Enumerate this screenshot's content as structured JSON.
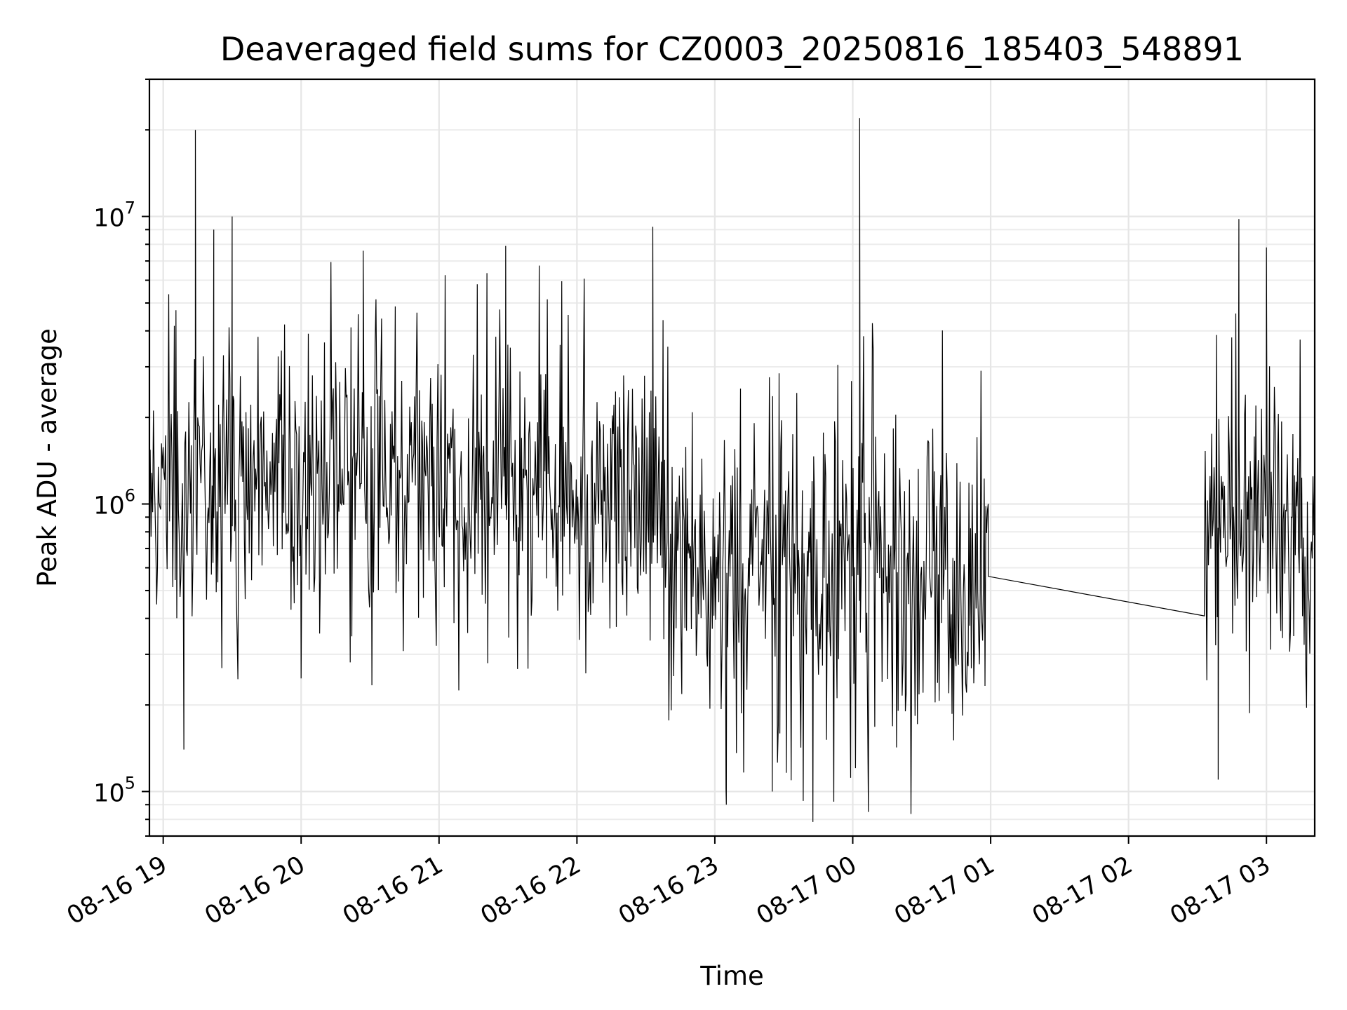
{
  "chart_data": {
    "type": "line",
    "title": "Deaveraged field sums for CZ0003_20250816_185403_548891",
    "xlabel": "Time",
    "ylabel": "Peak ADU - average",
    "y_scale": "log",
    "grid": "on (major and minor)",
    "legend": "none",
    "series_color": "#000000",
    "x_range": [
      "2025-08-16 18:54",
      "2025-08-17 03:21"
    ],
    "ylim": [
      70000,
      30000000
    ],
    "x_ticks": [
      "08-16 19",
      "08-16 20",
      "08-16 21",
      "08-16 22",
      "08-16 23",
      "08-17 00",
      "08-17 01",
      "08-17 02",
      "08-17 03"
    ],
    "x_tick_times": [
      "2025-08-16 19:00",
      "2025-08-16 20:00",
      "2025-08-16 21:00",
      "2025-08-16 22:00",
      "2025-08-16 23:00",
      "2025-08-17 00:00",
      "2025-08-17 01:00",
      "2025-08-17 02:00",
      "2025-08-17 03:00"
    ],
    "y_ticks": [
      {
        "value": 100000,
        "base": "10",
        "exp": "5"
      },
      {
        "value": 1000000,
        "base": "10",
        "exp": "6"
      },
      {
        "value": 10000000,
        "base": "10",
        "exp": "7"
      }
    ],
    "gap": {
      "start": "2025-08-17 00:59",
      "end": "2025-08-17 02:33",
      "value_start": 560000,
      "value_end": 680000
    },
    "segments": [
      {
        "start": "2025-08-16 18:54",
        "end": "2025-08-16 20:00",
        "median": 1100000,
        "low": 250000,
        "high": 3500000
      },
      {
        "start": "2025-08-16 20:00",
        "end": "2025-08-16 22:00",
        "median": 1200000,
        "low": 300000,
        "high": 4000000
      },
      {
        "start": "2025-08-16 22:00",
        "end": "2025-08-16 22:40",
        "median": 1000000,
        "low": 250000,
        "high": 3500000
      },
      {
        "start": "2025-08-16 22:40",
        "end": "2025-08-17 00:59",
        "median": 550000,
        "low": 130000,
        "high": 2500000
      },
      {
        "start": "2025-08-17 02:33",
        "end": "2025-08-17 03:21",
        "median": 750000,
        "low": 250000,
        "high": 3000000
      }
    ],
    "peaks": [
      {
        "t": "2025-08-16 19:14",
        "value": 20000000
      },
      {
        "t": "2025-08-16 19:22",
        "value": 9000000
      },
      {
        "t": "2025-08-16 19:30",
        "value": 10000000
      },
      {
        "t": "2025-08-16 20:27",
        "value": 7600000
      },
      {
        "t": "2025-08-16 21:29",
        "value": 7900000
      },
      {
        "t": "2025-08-16 22:33",
        "value": 9200000
      },
      {
        "t": "2025-08-17 00:03",
        "value": 22000000
      },
      {
        "t": "2025-08-17 02:48",
        "value": 9800000
      },
      {
        "t": "2025-08-17 03:00",
        "value": 7800000
      }
    ],
    "troughs": [
      {
        "t": "2025-08-16 19:09",
        "value": 140000
      },
      {
        "t": "2025-08-16 23:05",
        "value": 90000
      },
      {
        "t": "2025-08-16 23:25",
        "value": 100000
      },
      {
        "t": "2025-08-17 02:39",
        "value": 110000
      }
    ]
  }
}
